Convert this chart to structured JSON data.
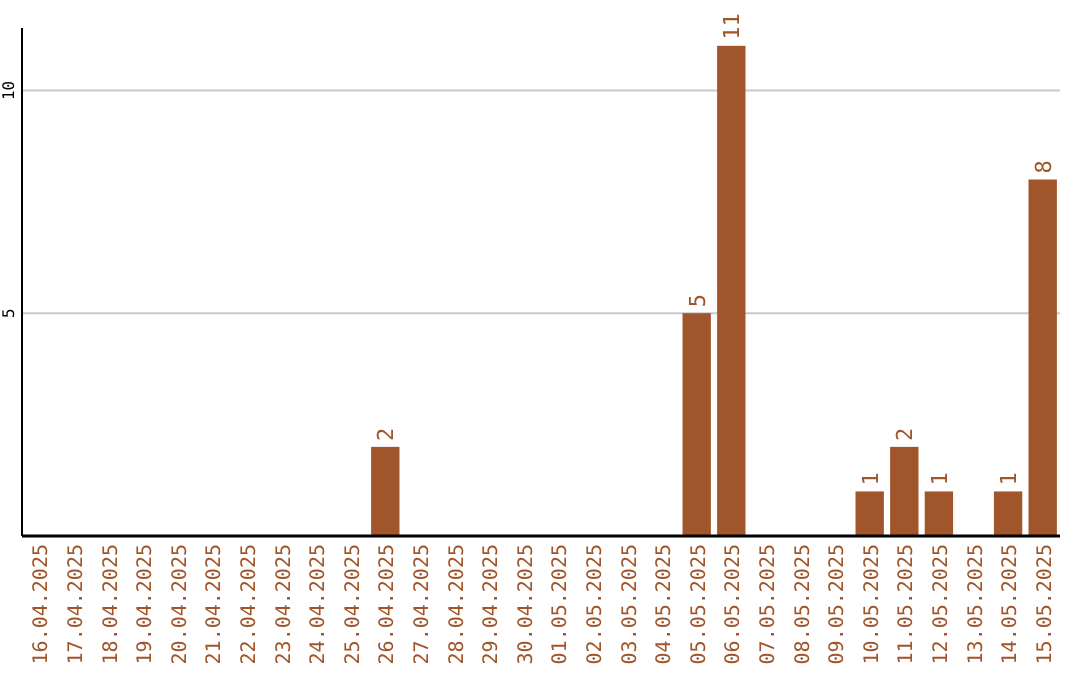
{
  "chart_data": {
    "type": "bar",
    "categories": [
      "16.04.2025",
      "17.04.2025",
      "18.04.2025",
      "19.04.2025",
      "20.04.2025",
      "21.04.2025",
      "22.04.2025",
      "23.04.2025",
      "24.04.2025",
      "25.04.2025",
      "26.04.2025",
      "27.04.2025",
      "28.04.2025",
      "29.04.2025",
      "30.04.2025",
      "01.05.2025",
      "02.05.2025",
      "03.05.2025",
      "04.05.2025",
      "05.05.2025",
      "06.05.2025",
      "07.05.2025",
      "08.05.2025",
      "09.05.2025",
      "10.05.2025",
      "11.05.2025",
      "12.05.2025",
      "13.05.2025",
      "14.05.2025",
      "15.05.2025"
    ],
    "values": [
      0,
      0,
      0,
      0,
      0,
      0,
      0,
      0,
      0,
      0,
      2,
      0,
      0,
      0,
      0,
      0,
      0,
      0,
      0,
      5,
      11,
      0,
      0,
      0,
      1,
      2,
      1,
      0,
      1,
      8
    ],
    "value_labels": [
      null,
      null,
      null,
      null,
      null,
      null,
      null,
      null,
      null,
      null,
      "2",
      null,
      null,
      null,
      null,
      null,
      null,
      null,
      null,
      "5",
      "11",
      null,
      null,
      null,
      "1",
      "2",
      "1",
      null,
      "1",
      "8"
    ],
    "color": "#a0552a",
    "ylim": [
      0,
      11.4
    ],
    "yticks": [
      5,
      10
    ],
    "grid": "y"
  }
}
